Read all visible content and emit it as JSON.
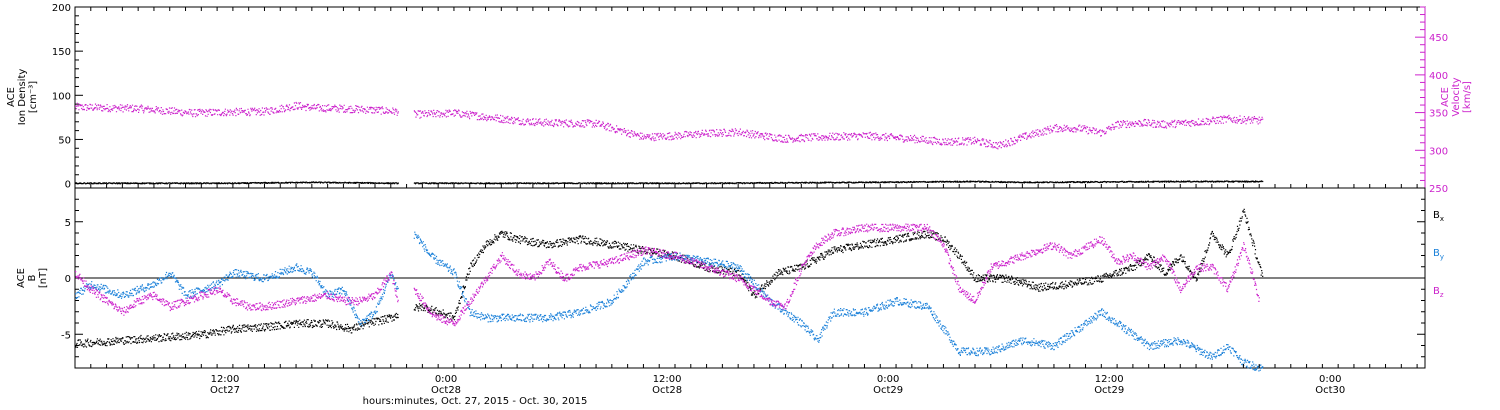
{
  "chart_data": [
    {
      "type": "scatter",
      "panel": "top",
      "ylabel_lines": [
        "ACE",
        "Ion Density",
        "[cm⁻³]"
      ],
      "ylabel_right_lines": [
        "ACE",
        "Velocity",
        "[km/s]"
      ],
      "ylim": [
        -5,
        200
      ],
      "ylim_right": [
        250,
        490
      ],
      "yticks": [
        0,
        50,
        100,
        150,
        200
      ],
      "yticks_right": [
        250,
        300,
        350,
        400,
        450
      ],
      "xlim_hours": [
        0,
        85.5
      ],
      "series": [
        {
          "axis": "right",
          "color": "#cc22cc",
          "points": [
            [
              0,
              358
            ],
            [
              4,
              356
            ],
            [
              7.5,
              350
            ],
            [
              9,
              351
            ],
            [
              12,
              352
            ],
            [
              14,
              360
            ],
            [
              15,
              357
            ],
            [
              17,
              356
            ],
            [
              19,
              354
            ],
            [
              20.4,
              352
            ],
            [
              21.5,
              348
            ],
            [
              24,
              350
            ],
            [
              26,
              345
            ],
            [
              28,
              340
            ],
            [
              30,
              337
            ],
            [
              33,
              336
            ],
            [
              36,
              318
            ],
            [
              38,
              320
            ],
            [
              40,
              323
            ],
            [
              42,
              325
            ],
            [
              43.5,
              320
            ],
            [
              45,
              316
            ],
            [
              47,
              318
            ],
            [
              50,
              320
            ],
            [
              53,
              316
            ],
            [
              55,
              312
            ],
            [
              57,
              313
            ],
            [
              58.5,
              307
            ],
            [
              60,
              318
            ],
            [
              62,
              330
            ],
            [
              63.5,
              330
            ],
            [
              65,
              324
            ],
            [
              66,
              335
            ],
            [
              67.5,
              337
            ],
            [
              69,
              335
            ],
            [
              71,
              338
            ],
            [
              73,
              342
            ],
            [
              75.2,
              340
            ]
          ]
        },
        {
          "axis": "left",
          "color": "#000000",
          "points": [
            [
              0,
              1
            ],
            [
              10,
              1
            ],
            [
              15,
              2
            ],
            [
              20.4,
              1
            ],
            [
              21.5,
              1
            ],
            [
              30,
              1
            ],
            [
              40,
              1
            ],
            [
              50,
              2
            ],
            [
              57,
              3
            ],
            [
              60,
              2
            ],
            [
              70,
              3
            ],
            [
              75.2,
              3
            ]
          ]
        }
      ]
    },
    {
      "type": "line",
      "panel": "bottom",
      "ylabel_lines": [
        "ACE",
        "B",
        "[nT]"
      ],
      "ylim": [
        -8,
        8
      ],
      "yticks": [
        -5,
        0,
        5
      ],
      "xlim_hours": [
        0,
        85.5
      ],
      "series": [
        {
          "name": "Bx",
          "label_main": "B",
          "label_sub": "x",
          "color": "#000000",
          "points": [
            [
              0,
              -5.8
            ],
            [
              3,
              -5.5
            ],
            [
              6,
              -5.2
            ],
            [
              8,
              -5
            ],
            [
              10,
              -4.5
            ],
            [
              12,
              -4.3
            ],
            [
              14,
              -4
            ],
            [
              16,
              -4
            ],
            [
              17.5,
              -4.5
            ],
            [
              18.5,
              -4
            ],
            [
              20,
              -3.5
            ],
            [
              21,
              -2.8
            ],
            [
              22,
              -2.5
            ],
            [
              23,
              -3
            ],
            [
              24,
              -3.5
            ],
            [
              25,
              1
            ],
            [
              26,
              3
            ],
            [
              27,
              4
            ],
            [
              28,
              3.5
            ],
            [
              30,
              3
            ],
            [
              32,
              3.5
            ],
            [
              34,
              3
            ],
            [
              36,
              2.5
            ],
            [
              38,
              2
            ],
            [
              40,
              1
            ],
            [
              42,
              0.5
            ],
            [
              43,
              -1.5
            ],
            [
              44.5,
              0.5
            ],
            [
              46,
              1
            ],
            [
              48,
              2.5
            ],
            [
              50,
              3
            ],
            [
              52,
              3.5
            ],
            [
              54,
              4
            ],
            [
              55,
              3.5
            ],
            [
              56,
              2
            ],
            [
              57,
              0
            ],
            [
              59,
              0
            ],
            [
              61,
              -0.8
            ],
            [
              63,
              -0.5
            ],
            [
              65,
              0
            ],
            [
              67,
              1
            ],
            [
              68,
              2
            ],
            [
              69,
              0.5
            ],
            [
              70,
              2
            ],
            [
              71,
              0
            ],
            [
              72,
              4
            ],
            [
              73,
              2
            ],
            [
              74,
              6
            ],
            [
              75.2,
              0
            ]
          ]
        },
        {
          "name": "By",
          "label_main": "B",
          "label_sub": "y",
          "color": "#1a80d9",
          "points": [
            [
              0,
              -1.5
            ],
            [
              1,
              -0.5
            ],
            [
              3,
              -1.5
            ],
            [
              5,
              -0.5
            ],
            [
              6,
              0.5
            ],
            [
              7,
              -1.5
            ],
            [
              8,
              -1
            ],
            [
              9,
              -0.5
            ],
            [
              10,
              0.5
            ],
            [
              12,
              0
            ],
            [
              14,
              1
            ],
            [
              15,
              0.5
            ],
            [
              16,
              -1.5
            ],
            [
              17,
              -1
            ],
            [
              18,
              -4
            ],
            [
              19,
              -3
            ],
            [
              20,
              0.5
            ],
            [
              20.4,
              -1
            ],
            [
              21.5,
              4
            ],
            [
              22.5,
              2
            ],
            [
              24,
              0.5
            ],
            [
              25,
              -3
            ],
            [
              26,
              -3.5
            ],
            [
              28,
              -3.5
            ],
            [
              30,
              -3.5
            ],
            [
              32,
              -3
            ],
            [
              34,
              -2
            ],
            [
              36,
              1.5
            ],
            [
              38,
              2
            ],
            [
              40,
              1.5
            ],
            [
              42,
              1
            ],
            [
              44,
              -2
            ],
            [
              46,
              -4
            ],
            [
              47,
              -5.5
            ],
            [
              48,
              -3
            ],
            [
              50,
              -3
            ],
            [
              52,
              -2
            ],
            [
              54,
              -2.5
            ],
            [
              56,
              -6.5
            ],
            [
              58,
              -6.5
            ],
            [
              60,
              -5.5
            ],
            [
              62,
              -6
            ],
            [
              64,
              -4
            ],
            [
              65,
              -3
            ],
            [
              66,
              -4
            ],
            [
              67,
              -5
            ],
            [
              68,
              -6
            ],
            [
              70,
              -5.5
            ],
            [
              72,
              -7
            ],
            [
              73,
              -6
            ],
            [
              74,
              -7.5
            ],
            [
              75.2,
              -8
            ]
          ]
        },
        {
          "name": "Bz",
          "label_main": "B",
          "label_sub": "z",
          "color": "#cc22cc",
          "points": [
            [
              0,
              0.5
            ],
            [
              1,
              -1
            ],
            [
              2,
              -2
            ],
            [
              3,
              -3
            ],
            [
              4,
              -2
            ],
            [
              5,
              -1.5
            ],
            [
              6,
              -2.5
            ],
            [
              7,
              -2
            ],
            [
              8,
              -1.5
            ],
            [
              9,
              -1
            ],
            [
              10,
              -2
            ],
            [
              11,
              -2.5
            ],
            [
              12,
              -2.5
            ],
            [
              14,
              -2
            ],
            [
              16,
              -1.5
            ],
            [
              17,
              -2
            ],
            [
              18,
              -2
            ],
            [
              19,
              -1.5
            ],
            [
              20,
              0.5
            ],
            [
              20.4,
              -2
            ],
            [
              21.5,
              -1
            ],
            [
              22.5,
              -3
            ],
            [
              23,
              -3.5
            ],
            [
              24,
              -4
            ],
            [
              25,
              -2
            ],
            [
              26,
              0
            ],
            [
              27,
              2
            ],
            [
              28,
              0.5
            ],
            [
              29,
              0
            ],
            [
              30,
              1.5
            ],
            [
              31,
              0
            ],
            [
              32,
              1
            ],
            [
              34,
              1.5
            ],
            [
              36,
              2.5
            ],
            [
              38,
              2
            ],
            [
              40,
              1
            ],
            [
              42,
              0
            ],
            [
              43,
              -1
            ],
            [
              44,
              -2
            ],
            [
              45,
              -2.5
            ],
            [
              46,
              1
            ],
            [
              47,
              3
            ],
            [
              48,
              4
            ],
            [
              50,
              4.5
            ],
            [
              52,
              4.5
            ],
            [
              54,
              4.5
            ],
            [
              55,
              3
            ],
            [
              56,
              -1
            ],
            [
              57,
              -2
            ],
            [
              58,
              1
            ],
            [
              60,
              2
            ],
            [
              62,
              3
            ],
            [
              63,
              2
            ],
            [
              65,
              3.5
            ],
            [
              66,
              1.5
            ],
            [
              67,
              2
            ],
            [
              68,
              1
            ],
            [
              69,
              2
            ],
            [
              70,
              -1
            ],
            [
              71,
              1
            ],
            [
              72,
              1
            ],
            [
              73,
              -1
            ],
            [
              74,
              3
            ],
            [
              75,
              -2
            ]
          ]
        }
      ]
    }
  ],
  "x_axis": {
    "tick_labels": [
      {
        "hours": 9.5,
        "time": "12:00",
        "date": "Oct27"
      },
      {
        "hours": 23.5,
        "time": "0:00",
        "date": "Oct28"
      },
      {
        "hours": 37.5,
        "time": "12:00",
        "date": "Oct28"
      },
      {
        "hours": 51.5,
        "time": "0:00",
        "date": "Oct29"
      },
      {
        "hours": 65.5,
        "time": "12:00",
        "date": "Oct29"
      },
      {
        "hours": 79.5,
        "time": "0:00",
        "date": "Oct30"
      }
    ],
    "title": "hours:minutes, Oct. 27, 2015 - Oct. 30, 2015"
  }
}
